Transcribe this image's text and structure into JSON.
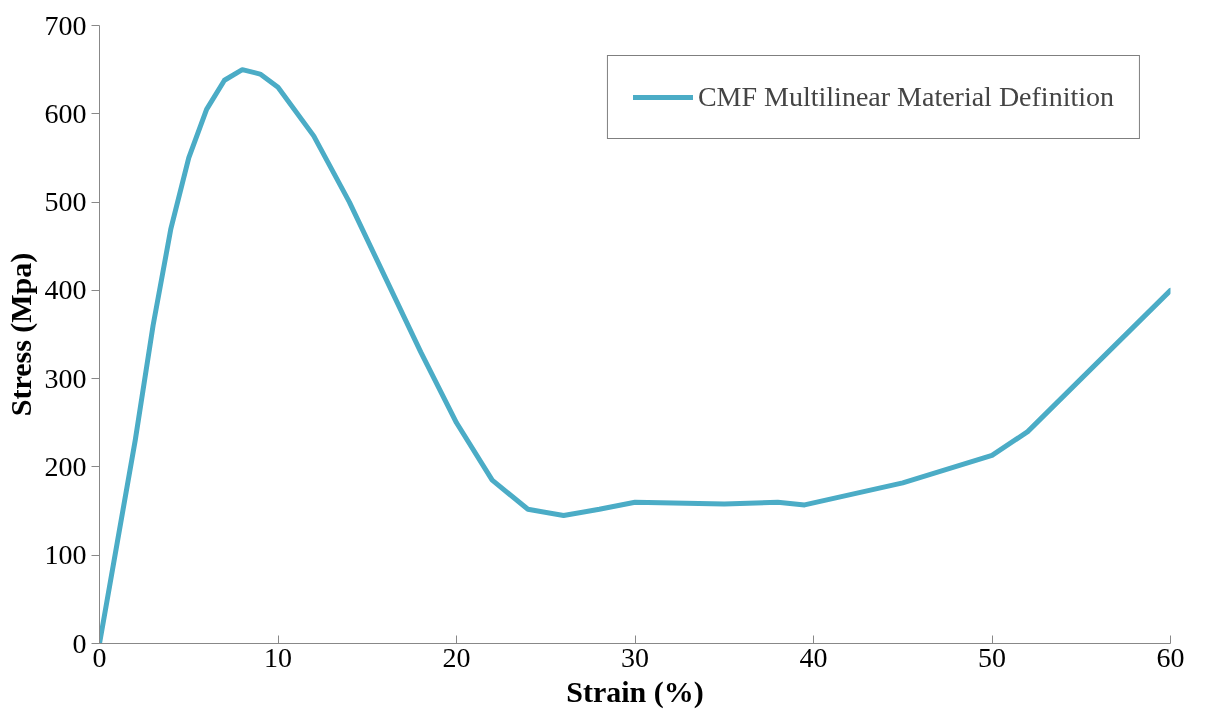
{
  "chart_data": {
    "type": "line",
    "xlabel": "Strain (%)",
    "ylabel": "Stress (Mpa)",
    "series": [
      {
        "name": "CMF Multilinear Material Definition",
        "color": "#4bacc6",
        "x": [
          0,
          1,
          2,
          3,
          4,
          5,
          6,
          7,
          8,
          9,
          10,
          12,
          14,
          16,
          18,
          20,
          22,
          24,
          26,
          28,
          30,
          35,
          38,
          39.5,
          45,
          50,
          52,
          55,
          60
        ],
        "values": [
          0,
          115,
          230,
          360,
          470,
          550,
          605,
          638,
          650,
          645,
          630,
          575,
          500,
          415,
          330,
          250,
          185,
          152,
          145,
          152,
          160,
          158,
          160,
          157,
          182,
          213,
          240,
          300,
          400
        ]
      }
    ],
    "xlim": [
      0,
      60
    ],
    "ylim": [
      0,
      700
    ],
    "xticks": [
      0,
      10,
      20,
      30,
      40,
      50,
      60
    ],
    "yticks": [
      0,
      100,
      200,
      300,
      400,
      500,
      600,
      700
    ],
    "grid": false,
    "legend": "top right",
    "marker": "none",
    "line_style": "solid"
  }
}
